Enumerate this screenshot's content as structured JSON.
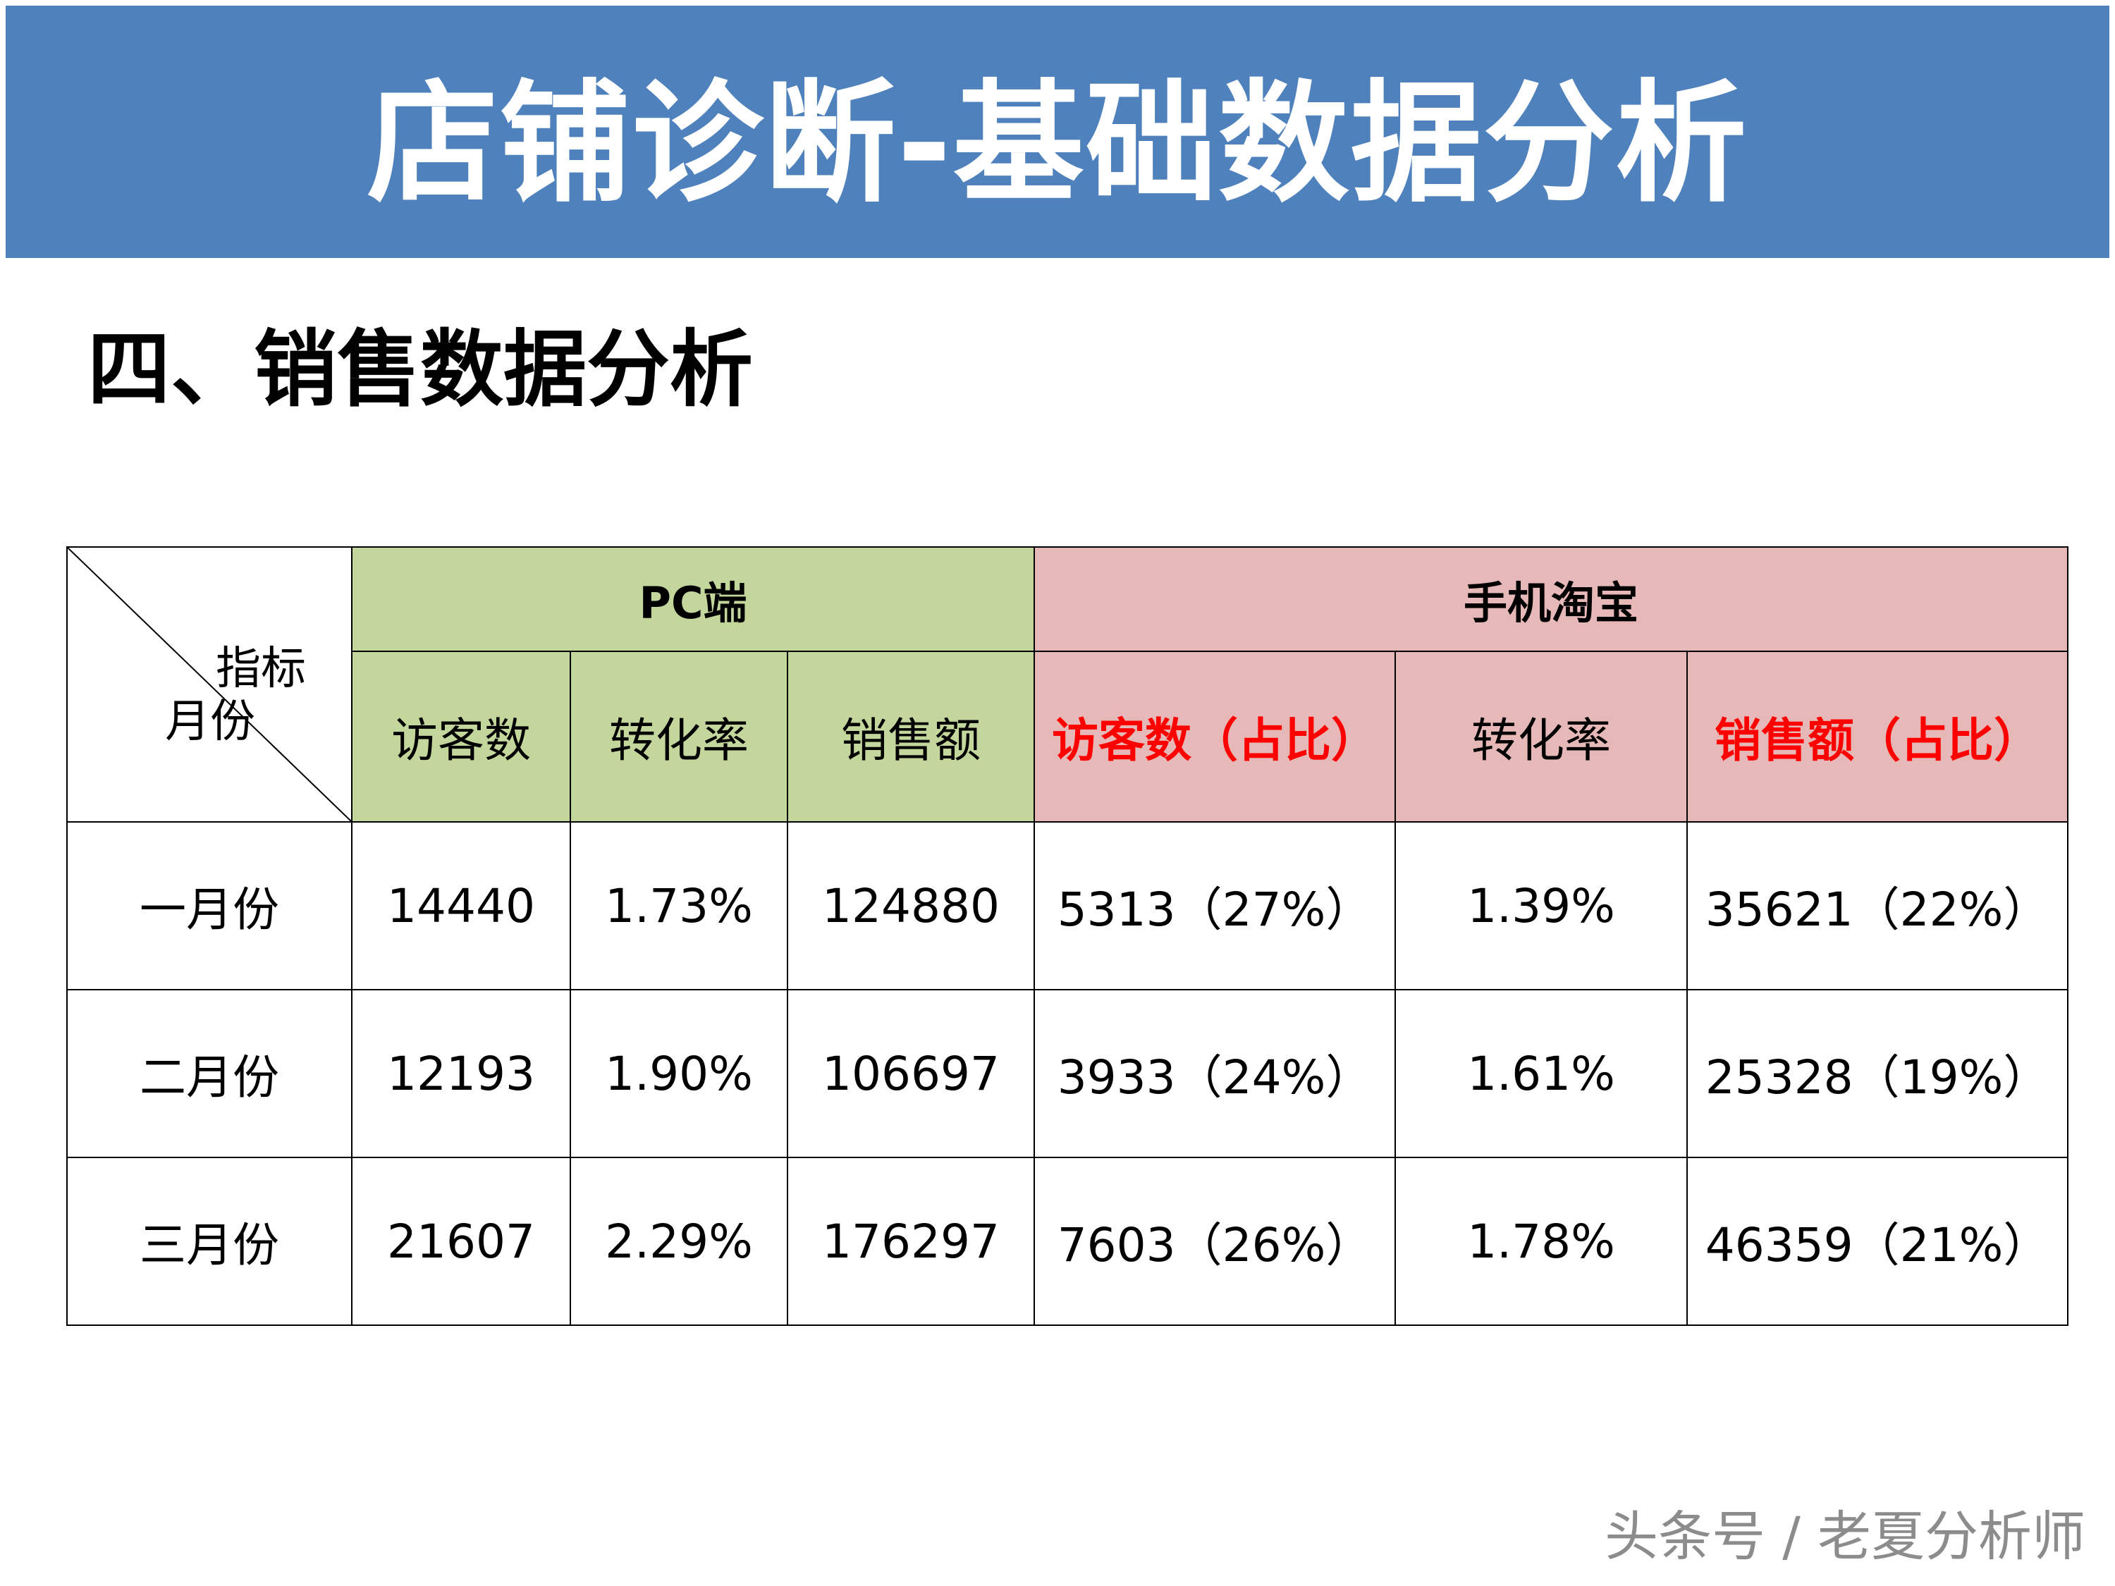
{
  "banner": {
    "title": "店铺诊断-基础数据分析"
  },
  "section": {
    "title": "四、销售数据分析"
  },
  "table": {
    "corner": {
      "top_label": "指标",
      "bottom_label": "月份"
    },
    "groups": {
      "pc": "PC端",
      "mobile": "手机淘宝"
    },
    "columns": {
      "pc_visitors": "访客数",
      "pc_conversion": "转化率",
      "pc_sales": "销售额",
      "mb_visitors": "访客数（占比）",
      "mb_conversion": "转化率",
      "mb_sales": "销售额（占比）"
    },
    "rows": [
      {
        "month": "一月份",
        "pc_visitors": "14440",
        "pc_conversion": "1.73%",
        "pc_sales": "124880",
        "mb_visitors": "5313（27%）",
        "mb_conversion": "1.39%",
        "mb_sales": "35621（22%）"
      },
      {
        "month": "二月份",
        "pc_visitors": "12193",
        "pc_conversion": "1.90%",
        "pc_sales": "106697",
        "mb_visitors": "3933（24%）",
        "mb_conversion": "1.61%",
        "mb_sales": "25328（19%）"
      },
      {
        "month": "三月份",
        "pc_visitors": "21607",
        "pc_conversion": "2.29%",
        "pc_sales": "176297",
        "mb_visitors": "7603（26%）",
        "mb_conversion": "1.78%",
        "mb_sales": "46359（21%）"
      }
    ]
  },
  "watermark": {
    "text": "头条号 / 老夏分析师"
  },
  "colors": {
    "banner": "#4f81bd",
    "pc_header": "#c3d69b",
    "mobile_header": "#e6b9b8",
    "highlight_text": "#ff0000"
  }
}
